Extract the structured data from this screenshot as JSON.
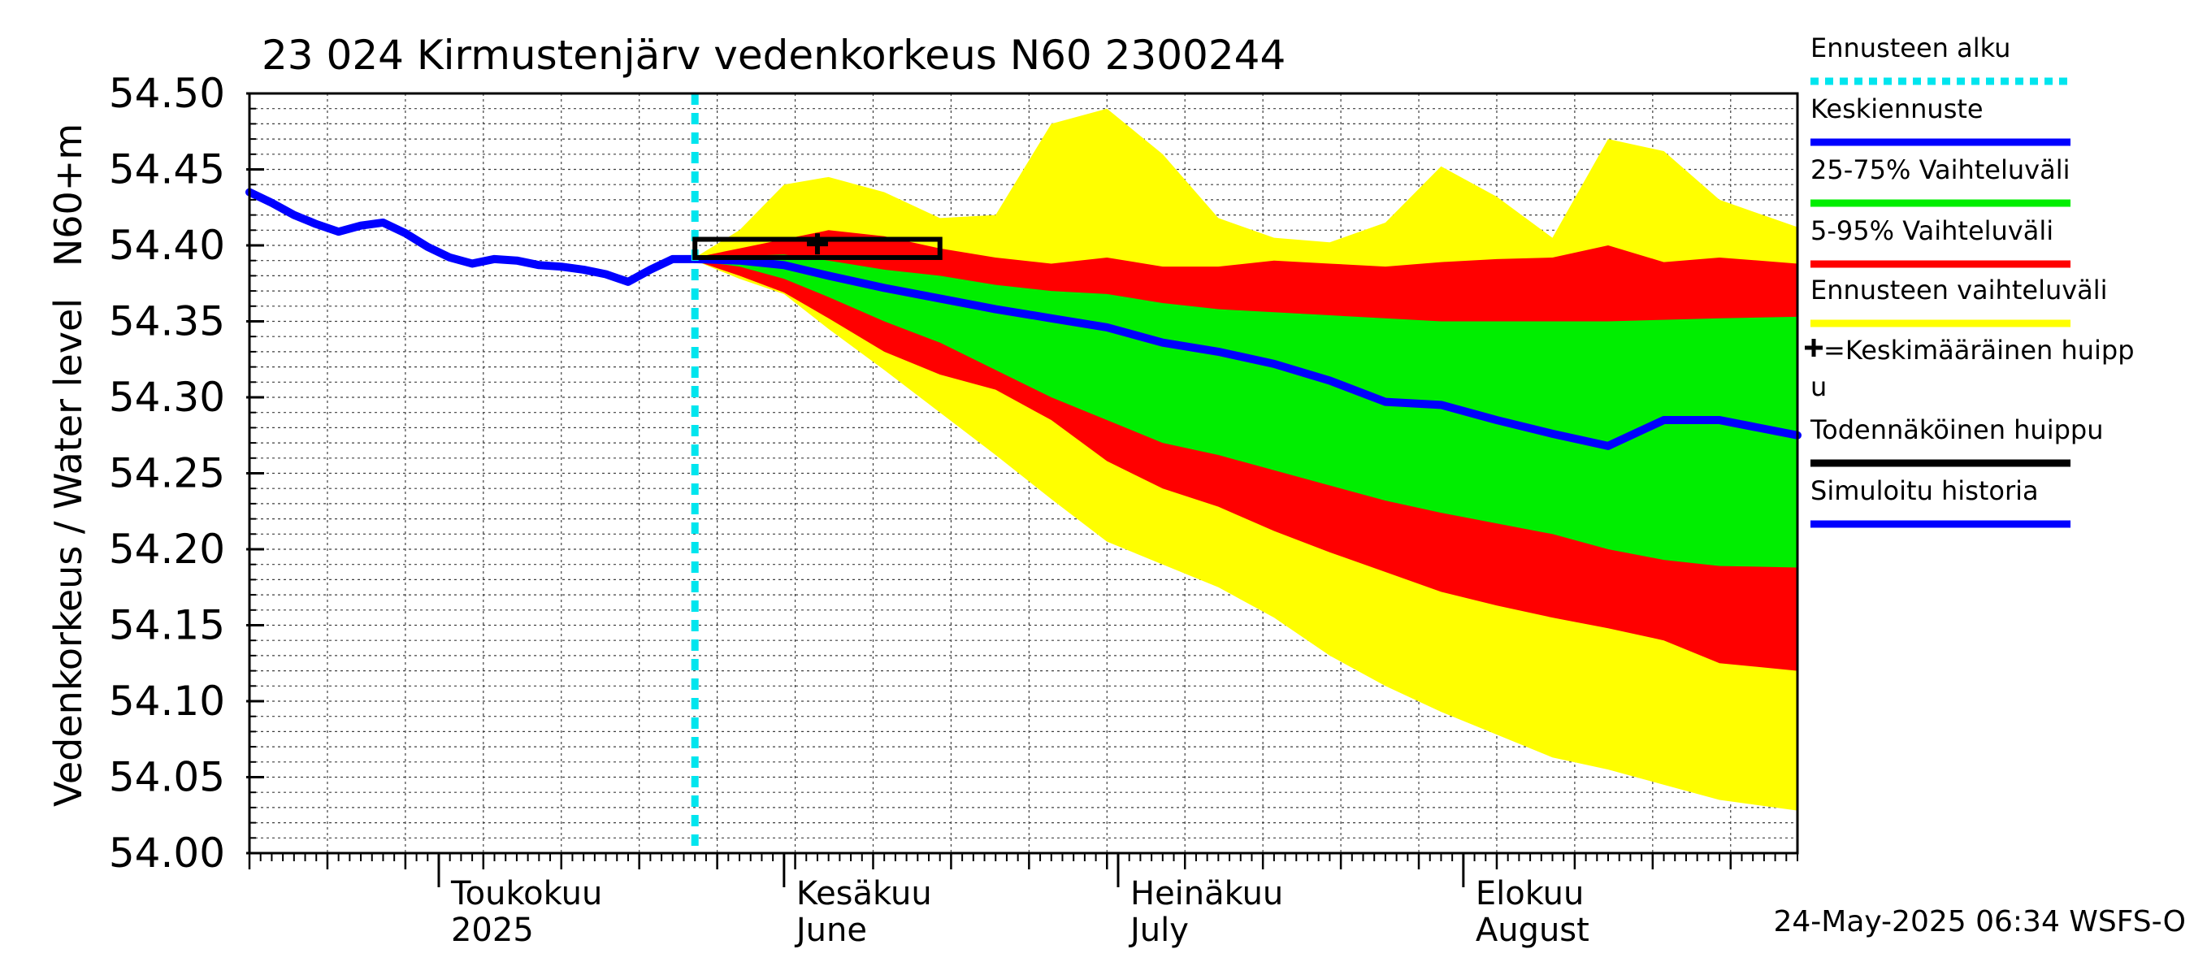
{
  "chart_data": {
    "type": "area",
    "title": "23 024 Kirmustenjärv vedenkorkeus N60 2300244",
    "ylabel_main": "Vedenkorkeus / Water level",
    "ylabel_unit": "N60+m",
    "ylim": [
      54.0,
      54.5
    ],
    "y_ticks": [
      54.0,
      54.05,
      54.1,
      54.15,
      54.2,
      54.25,
      54.3,
      54.35,
      54.4,
      54.45,
      54.5
    ],
    "y_tick_labels": [
      "54.00",
      "54.05",
      "54.10",
      "54.15",
      "54.20",
      "54.25",
      "54.30",
      "54.35",
      "54.40",
      "54.45",
      "54.50"
    ],
    "x_start": "2025-04-14",
    "x_end": "2025-08-31",
    "grid": true,
    "legend_position": "right",
    "footer": "24-May-2025 06:34 WSFS-O",
    "forecast_start": "2025-05-24",
    "month_labels": [
      {
        "date": "2025-05-01",
        "fi": "Toukokuu",
        "en": "2025"
      },
      {
        "date": "2025-06-01",
        "fi": "Kesäkuu",
        "en": "June"
      },
      {
        "date": "2025-07-01",
        "fi": "Heinäkuu",
        "en": "July"
      },
      {
        "date": "2025-08-01",
        "fi": "Elokuu",
        "en": "August"
      }
    ],
    "legend": [
      {
        "label": "Ennusteen alku",
        "color": "#00e5ee",
        "style": "dotted"
      },
      {
        "label": "Keskiennuste",
        "color": "#0000ff",
        "style": "solid"
      },
      {
        "label": "25-75% Vaihteluväli",
        "color": "#00ee00",
        "style": "solid"
      },
      {
        "label": "5-95% Vaihteluväli",
        "color": "#ff0000",
        "style": "solid"
      },
      {
        "label": "Ennusteen vaihteluväli",
        "color": "#ffff00",
        "style": "solid"
      },
      {
        "label": "=Keskimääräinen huippu",
        "color": "#000000",
        "style": "cross"
      },
      {
        "label": "Todennäköinen huippu",
        "color": "#000000",
        "style": "solid"
      },
      {
        "label": "Simuloitu historia",
        "color": "#0000ff",
        "style": "solid"
      }
    ],
    "colors": {
      "forecast_range": "#ffff00",
      "p5_95": "#ff0000",
      "p25_75": "#00ee00",
      "median": "#0000ff",
      "history": "#0000ff",
      "forecast_start": "#00e5ee",
      "peak": "#000000"
    },
    "history": {
      "x": [
        "2025-04-14",
        "2025-04-16",
        "2025-04-18",
        "2025-04-20",
        "2025-04-22",
        "2025-04-24",
        "2025-04-26",
        "2025-04-28",
        "2025-04-30",
        "2025-05-02",
        "2025-05-04",
        "2025-05-06",
        "2025-05-08",
        "2025-05-10",
        "2025-05-12",
        "2025-05-14",
        "2025-05-16",
        "2025-05-18",
        "2025-05-20",
        "2025-05-22",
        "2025-05-24"
      ],
      "y": [
        54.435,
        54.428,
        54.42,
        54.414,
        54.409,
        54.413,
        54.415,
        54.408,
        54.399,
        54.392,
        54.388,
        54.391,
        54.39,
        54.387,
        54.386,
        54.384,
        54.381,
        54.376,
        54.384,
        54.391,
        54.391
      ]
    },
    "forecast": {
      "x": [
        "2025-05-24",
        "2025-05-28",
        "2025-06-01",
        "2025-06-05",
        "2025-06-10",
        "2025-06-15",
        "2025-06-20",
        "2025-06-25",
        "2025-06-30",
        "2025-07-05",
        "2025-07-10",
        "2025-07-15",
        "2025-07-20",
        "2025-07-25",
        "2025-07-30",
        "2025-08-04",
        "2025-08-09",
        "2025-08-14",
        "2025-08-19",
        "2025-08-24",
        "2025-08-31"
      ],
      "median": [
        54.391,
        54.39,
        54.387,
        54.38,
        54.372,
        54.365,
        54.358,
        54.352,
        54.346,
        54.336,
        54.33,
        54.322,
        54.311,
        54.297,
        54.295,
        54.285,
        54.276,
        54.268,
        54.285,
        54.285,
        54.275
      ],
      "p25": [
        54.39,
        54.386,
        54.378,
        54.366,
        54.35,
        54.336,
        54.318,
        54.3,
        54.285,
        54.27,
        54.262,
        54.252,
        54.242,
        54.232,
        54.224,
        54.217,
        54.21,
        54.2,
        54.193,
        54.189,
        54.188
      ],
      "p75": [
        54.391,
        54.393,
        54.394,
        54.39,
        54.384,
        54.38,
        54.374,
        54.37,
        54.368,
        54.362,
        54.358,
        54.356,
        54.354,
        54.352,
        54.35,
        54.35,
        54.35,
        54.35,
        54.351,
        54.352,
        54.353
      ],
      "p5": [
        54.39,
        54.38,
        54.369,
        54.352,
        54.33,
        54.315,
        54.305,
        54.285,
        54.258,
        54.24,
        54.228,
        54.212,
        54.198,
        54.185,
        54.172,
        54.163,
        54.155,
        54.148,
        54.14,
        54.125,
        54.12
      ],
      "p95": [
        54.392,
        54.398,
        54.404,
        54.41,
        54.406,
        54.398,
        54.392,
        54.388,
        54.392,
        54.386,
        54.386,
        54.39,
        54.388,
        54.386,
        54.389,
        54.391,
        54.392,
        54.4,
        54.389,
        54.392,
        54.388
      ],
      "min": [
        54.39,
        54.378,
        54.368,
        54.345,
        54.318,
        54.29,
        54.262,
        54.233,
        54.205,
        54.19,
        54.175,
        54.155,
        54.13,
        54.11,
        54.093,
        54.078,
        54.063,
        54.055,
        54.045,
        54.035,
        54.028
      ],
      "max": [
        54.392,
        54.41,
        54.44,
        54.445,
        54.435,
        54.418,
        54.42,
        54.48,
        54.49,
        54.46,
        54.418,
        54.405,
        54.402,
        54.415,
        54.452,
        54.432,
        54.405,
        54.47,
        54.462,
        54.43,
        54.412
      ]
    },
    "mean_peak": {
      "x": "2025-06-04",
      "y": 54.401
    },
    "likely_peak": {
      "x_start": "2025-05-24",
      "x_end": "2025-06-15",
      "y_low": 54.392,
      "y_high": 54.404
    }
  }
}
